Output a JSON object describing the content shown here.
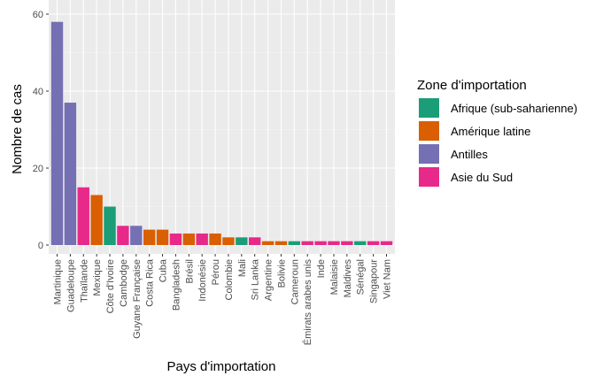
{
  "chart_data": {
    "type": "bar",
    "xlabel": "Pays d'importation",
    "ylabel": "Nombre de cas",
    "ylim": [
      0,
      60
    ],
    "yticks": [
      0,
      20,
      40,
      60
    ],
    "grid": true,
    "legend_placement": "right",
    "legend_title": "Zone d'importation",
    "zones": [
      {
        "name": "Afrique (sub-saharienne)",
        "color": "#1B9E77"
      },
      {
        "name": "Amérique latine",
        "color": "#D95F02"
      },
      {
        "name": "Antilles",
        "color": "#7570B3"
      },
      {
        "name": "Asie du Sud",
        "color": "#E7298A"
      }
    ],
    "categories": [
      "Martinique",
      "Guadeloupe",
      "Thaïlande",
      "Mexique",
      "Côte d'Ivoire",
      "Cambodge",
      "Guyane Française",
      "Costa Rica",
      "Cuba",
      "Bangladesh",
      "Brésil",
      "Indonésie",
      "Pérou",
      "Colombie",
      "Mali",
      "Sri Lanka",
      "Argentine",
      "Bolivie",
      "Cameroun",
      "Émirats arabes unis",
      "Inde",
      "Malaisie",
      "Maldives",
      "Sénégal",
      "Singapour",
      "Viet Nam"
    ],
    "values": [
      58,
      37,
      15,
      13,
      10,
      5,
      5,
      4,
      4,
      3,
      3,
      3,
      3,
      2,
      2,
      2,
      1,
      1,
      1,
      1,
      1,
      1,
      1,
      1,
      1,
      1
    ],
    "zone": [
      "Antilles",
      "Antilles",
      "Asie du Sud",
      "Amérique latine",
      "Afrique (sub-saharienne)",
      "Asie du Sud",
      "Antilles",
      "Amérique latine",
      "Amérique latine",
      "Asie du Sud",
      "Amérique latine",
      "Asie du Sud",
      "Amérique latine",
      "Amérique latine",
      "Afrique (sub-saharienne)",
      "Asie du Sud",
      "Amérique latine",
      "Amérique latine",
      "Afrique (sub-saharienne)",
      "Asie du Sud",
      "Asie du Sud",
      "Asie du Sud",
      "Asie du Sud",
      "Afrique (sub-saharienne)",
      "Asie du Sud",
      "Asie du Sud"
    ],
    "colors": {
      "panel": "#EBEBEB",
      "grid_major": "#FFFFFF",
      "grid_minor": "#F5F5F5"
    }
  }
}
